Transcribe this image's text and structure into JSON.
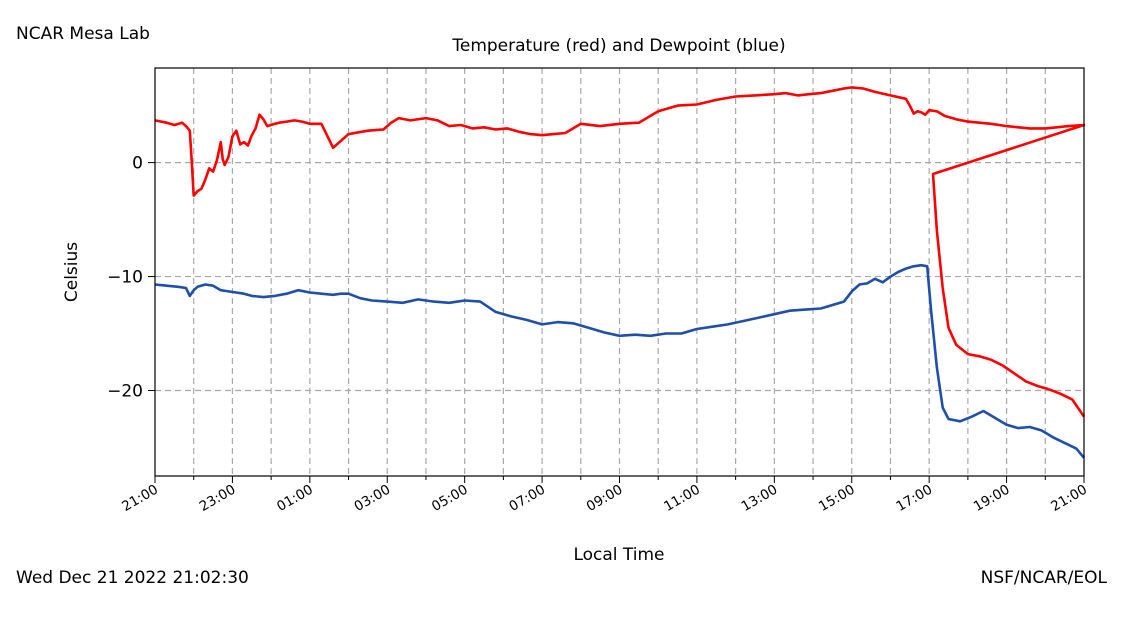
{
  "site_label": "NCAR Mesa Lab",
  "timestamp": "Wed Dec 21 2022 21:02:30",
  "credit": "NSF/NCAR/EOL",
  "chart_data": {
    "type": "line",
    "title": "Temperature (red) and Dewpoint (blue)",
    "xlabel": "Local Time",
    "ylabel": "Celsius",
    "xlim": [
      0,
      24
    ],
    "ylim": [
      -27.5,
      8.3
    ],
    "grid": true,
    "xticks": [
      {
        "x": 0,
        "label": "21:00"
      },
      {
        "x": 2,
        "label": "23:00"
      },
      {
        "x": 4,
        "label": "01:00"
      },
      {
        "x": 6,
        "label": "03:00"
      },
      {
        "x": 8,
        "label": "05:00"
      },
      {
        "x": 10,
        "label": "07:00"
      },
      {
        "x": 12,
        "label": "09:00"
      },
      {
        "x": 14,
        "label": "11:00"
      },
      {
        "x": 16,
        "label": "13:00"
      },
      {
        "x": 18,
        "label": "15:00"
      },
      {
        "x": 20,
        "label": "17:00"
      },
      {
        "x": 22,
        "label": "19:00"
      },
      {
        "x": 24,
        "label": "21:00"
      }
    ],
    "xminor": [
      1,
      3,
      5,
      7,
      9,
      11,
      13,
      15,
      17,
      19,
      21,
      23
    ],
    "yticks": [
      {
        "y": 0,
        "label": "0"
      },
      {
        "y": -10,
        "label": "−10"
      },
      {
        "y": -20,
        "label": "−20"
      }
    ],
    "series": [
      {
        "color": "#ff0000",
        "x": [
          0,
          0.3,
          0.5,
          0.7,
          0.8,
          0.9,
          0.95,
          1.0,
          1.1,
          1.2,
          1.3,
          1.4,
          1.5,
          1.6,
          1.7,
          1.75,
          1.8,
          1.9,
          2.0,
          2.1,
          2.2,
          2.3,
          2.4,
          2.5,
          2.6,
          2.7,
          2.8,
          2.9,
          3.0,
          3.1,
          3.2,
          3.4,
          3.6,
          3.8,
          4.0,
          4.3,
          4.6,
          5.0,
          5.5,
          5.9,
          6.0,
          6.1,
          6.3,
          6.6,
          7.0,
          7.3,
          7.6,
          7.9,
          8.2,
          8.5,
          8.8,
          9.1,
          9.4,
          9.7,
          10.0,
          10.3,
          10.6,
          11.0,
          11.5,
          12.0,
          12.5,
          13.0,
          13.5,
          14.0,
          14.5,
          15.0,
          15.5,
          16.0,
          16.3,
          16.6,
          16.9,
          17.2,
          17.5,
          17.8,
          18.0,
          18.3,
          18.6,
          19.0,
          19.4,
          19.5,
          19.6,
          19.7,
          19.8,
          19.9,
          20.0,
          20.2,
          20.4,
          20.7,
          21.0,
          21.3,
          21.6,
          22.0,
          22.3,
          22.6,
          23.0,
          23.3,
          23.6,
          24.0
        ],
        "y": [
          3.7,
          3.5,
          3.3,
          3.5,
          3.2,
          2.8,
          0.0,
          -2.9,
          -2.5,
          -2.3,
          -1.5,
          -0.5,
          -0.8,
          0.2,
          1.8,
          0.3,
          -0.2,
          0.5,
          2.3,
          2.8,
          1.6,
          1.8,
          1.5,
          2.4,
          3.0,
          4.2,
          3.8,
          3.2,
          3.3,
          3.4,
          3.5,
          3.6,
          3.7,
          3.6,
          3.4,
          3.4,
          1.3,
          2.5,
          2.8,
          2.9,
          3.2,
          3.5,
          3.9,
          3.7,
          3.9,
          3.7,
          3.2,
          3.3,
          3.0,
          3.1,
          2.9,
          3.0,
          2.7,
          2.5,
          2.4,
          2.5,
          2.6,
          3.4,
          3.2,
          3.4,
          3.5,
          4.5,
          5.0,
          5.1,
          5.5,
          5.8,
          5.9,
          6.0,
          6.1,
          5.9,
          6.0,
          6.1,
          6.3,
          6.5,
          6.6,
          6.5,
          6.2,
          5.9,
          5.6,
          5.0,
          4.3,
          4.5,
          4.4,
          4.2,
          4.6,
          4.5,
          4.1,
          3.8,
          3.6,
          3.5,
          3.4,
          3.2,
          3.1,
          3.0,
          3.0,
          3.1,
          3.2,
          3.3
        ],
        "y_tail": [
          [
            20.0,
            3.0
          ],
          [
            20.1,
            -1.0
          ],
          [
            20.2,
            -6.0
          ],
          [
            20.35,
            -11.0
          ],
          [
            20.5,
            -14.5
          ],
          [
            20.7,
            -16.0
          ],
          [
            21.0,
            -16.8
          ],
          [
            21.3,
            -17.0
          ],
          [
            21.6,
            -17.3
          ],
          [
            21.9,
            -17.8
          ],
          [
            22.2,
            -18.5
          ],
          [
            22.5,
            -19.2
          ],
          [
            22.8,
            -19.6
          ],
          [
            23.1,
            -19.9
          ],
          [
            23.4,
            -20.3
          ],
          [
            23.7,
            -20.8
          ],
          [
            24.0,
            -22.3
          ]
        ]
      },
      {
        "color": "#1f4fa8",
        "x": [
          0,
          0.3,
          0.6,
          0.8,
          0.9,
          1.0,
          1.1,
          1.3,
          1.5,
          1.7,
          1.9,
          2.1,
          2.3,
          2.5,
          2.8,
          3.1,
          3.4,
          3.7,
          4.0,
          4.3,
          4.6,
          4.8,
          5.0,
          5.3,
          5.6,
          6.0,
          6.4,
          6.8,
          7.2,
          7.6,
          8.0,
          8.4,
          8.8,
          9.2,
          9.6,
          10.0,
          10.4,
          10.8,
          11.2,
          11.6,
          12.0,
          12.4,
          12.8,
          13.2,
          13.6,
          14.0,
          14.4,
          14.8,
          15.2,
          15.6,
          16.0,
          16.4,
          16.8,
          17.2,
          17.6,
          17.8,
          18.0,
          18.2,
          18.4,
          18.6,
          18.8,
          19.0,
          19.2,
          19.4,
          19.6,
          19.8
        ],
        "y": [
          -10.7,
          -10.8,
          -10.9,
          -11.0,
          -11.7,
          -11.2,
          -10.9,
          -10.7,
          -10.8,
          -11.2,
          -11.3,
          -11.4,
          -11.5,
          -11.7,
          -11.8,
          -11.7,
          -11.5,
          -11.2,
          -11.4,
          -11.5,
          -11.6,
          -11.5,
          -11.5,
          -11.9,
          -12.1,
          -12.2,
          -12.3,
          -12.0,
          -12.2,
          -12.3,
          -12.1,
          -12.2,
          -13.1,
          -13.5,
          -13.8,
          -14.2,
          -14.0,
          -14.1,
          -14.5,
          -14.9,
          -15.2,
          -15.1,
          -15.2,
          -15.0,
          -15.0,
          -14.6,
          -14.4,
          -14.2,
          -13.9,
          -13.6,
          -13.3,
          -13.0,
          -12.9,
          -12.8,
          -12.4,
          -12.2,
          -11.3,
          -10.7,
          -10.6,
          -10.2,
          -10.5,
          -10.0,
          -9.6,
          -9.3,
          -9.1,
          -9.0
        ],
        "y_tail": [
          [
            19.8,
            -9.0
          ],
          [
            19.95,
            -9.1
          ],
          [
            20.05,
            -13.0
          ],
          [
            20.2,
            -18.0
          ],
          [
            20.35,
            -21.5
          ],
          [
            20.5,
            -22.5
          ],
          [
            20.8,
            -22.7
          ],
          [
            21.1,
            -22.3
          ],
          [
            21.4,
            -21.8
          ],
          [
            21.7,
            -22.4
          ],
          [
            22.0,
            -23.0
          ],
          [
            22.3,
            -23.3
          ],
          [
            22.6,
            -23.2
          ],
          [
            22.9,
            -23.5
          ],
          [
            23.2,
            -24.1
          ],
          [
            23.5,
            -24.6
          ],
          [
            23.8,
            -25.1
          ],
          [
            24.0,
            -25.9
          ]
        ]
      }
    ]
  }
}
